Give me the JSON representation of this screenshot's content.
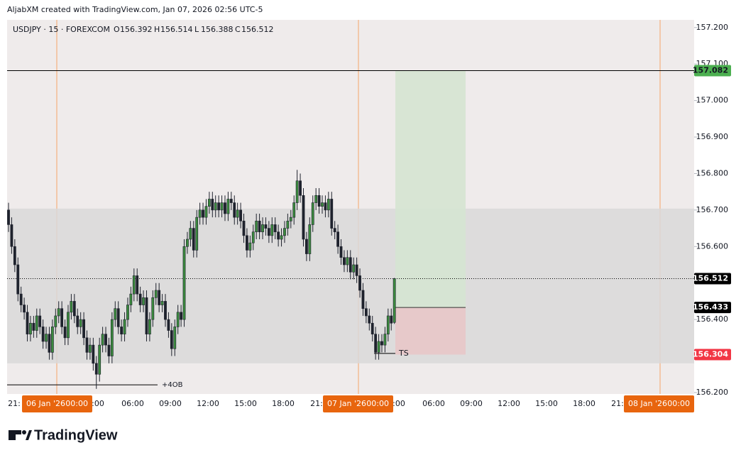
{
  "header": {
    "credit": "AljabXM created with TradingView.com, Jan 07, 2026 02:56 UTC-5",
    "symbol": "USDJPY · 15 · FOREXCOM",
    "ohlc": [
      {
        "label": "O",
        "value": 156.392
      },
      {
        "label": "H",
        "value": 156.514
      },
      {
        "label": "L",
        "value": 156.388
      },
      {
        "label": "C",
        "value": 156.512
      }
    ]
  },
  "footer": {
    "logo": "TradingView"
  },
  "chart_data": {
    "type": "candlestick",
    "ylim": [
      156.196,
      157.221
    ],
    "yticks": [
      {
        "value": 157.2,
        "label": "157.200"
      },
      {
        "value": 157.1,
        "label": "157.100"
      },
      {
        "value": 157.0,
        "label": "157.000"
      },
      {
        "value": 156.9,
        "label": "156.900"
      },
      {
        "value": 156.8,
        "label": "156.800"
      },
      {
        "value": 156.7,
        "label": "156.700"
      },
      {
        "value": 156.6,
        "label": "156.600"
      },
      {
        "value": 156.4,
        "label": "156.400"
      },
      {
        "value": 156.2,
        "label": "156.200"
      }
    ],
    "x_labels": [
      "21:",
      ":00",
      "06:00",
      "09:00",
      "12:00",
      "15:00",
      "18:00",
      "21:",
      ":00",
      "06:00",
      "09:00",
      "12:00",
      "15:00",
      "18:00",
      "21:"
    ],
    "date_labels": [
      {
        "date": "06 Jan '26",
        "time": "00:00"
      },
      {
        "date": "07 Jan '26",
        "time": "00:00"
      },
      {
        "date": "08 Jan '26",
        "time": "00:00"
      }
    ],
    "up_color": "#3b8a3e",
    "down_color": "#1e222d",
    "candles": {
      "open": [
        156.7,
        156.66,
        156.6,
        156.55,
        156.47,
        156.44,
        156.42,
        156.36,
        156.39,
        156.37,
        156.41,
        156.38,
        156.34,
        156.36,
        156.31,
        156.38,
        156.41,
        156.43,
        156.38,
        156.35,
        156.42,
        156.45,
        156.41,
        156.38,
        156.4,
        156.35,
        156.31,
        156.33,
        156.28,
        156.25,
        156.33,
        156.36,
        156.33,
        156.3,
        156.4,
        156.43,
        156.38,
        156.36,
        156.4,
        156.44,
        156.47,
        156.52,
        156.47,
        156.44,
        156.46,
        156.36,
        156.4,
        156.46,
        156.48,
        156.44,
        156.45,
        156.4,
        156.37,
        156.32,
        156.38,
        156.42,
        156.4,
        156.6,
        156.62,
        156.65,
        156.59,
        156.68,
        156.7,
        156.68,
        156.71,
        156.73,
        156.7,
        156.72,
        156.7,
        156.72,
        156.69,
        156.73,
        156.72,
        156.68,
        156.7,
        156.67,
        156.63,
        156.59,
        156.61,
        156.64,
        156.67,
        156.64,
        156.66,
        156.65,
        156.63,
        156.66,
        156.64,
        156.62,
        156.63,
        156.65,
        156.67,
        156.68,
        156.72,
        156.78,
        156.74,
        156.62,
        156.58,
        156.66,
        156.72,
        156.74,
        156.71,
        156.72,
        156.7,
        156.73,
        156.65,
        156.64,
        156.6,
        156.57,
        156.55,
        156.57,
        156.53,
        156.55,
        156.52,
        156.48,
        156.43,
        156.41,
        156.39,
        156.36,
        156.31,
        156.34,
        156.33,
        156.36,
        156.41,
        156.392
      ],
      "high": [
        156.72,
        156.68,
        156.62,
        156.57,
        156.49,
        156.46,
        156.44,
        156.41,
        156.41,
        156.43,
        156.43,
        156.4,
        156.38,
        156.38,
        156.4,
        156.43,
        156.45,
        156.45,
        156.4,
        156.44,
        156.47,
        156.47,
        156.43,
        156.42,
        156.42,
        156.37,
        156.35,
        156.35,
        156.3,
        156.35,
        156.38,
        156.38,
        156.35,
        156.42,
        156.45,
        156.45,
        156.4,
        156.42,
        156.46,
        156.49,
        156.54,
        156.54,
        156.49,
        156.48,
        156.48,
        156.42,
        156.48,
        156.5,
        156.5,
        156.47,
        156.47,
        156.42,
        156.39,
        156.4,
        156.44,
        156.44,
        156.62,
        156.64,
        156.67,
        156.67,
        156.7,
        156.72,
        156.72,
        156.73,
        156.75,
        156.75,
        156.74,
        156.74,
        156.74,
        156.74,
        156.75,
        156.75,
        156.74,
        156.72,
        156.72,
        156.69,
        156.65,
        156.63,
        156.66,
        156.69,
        156.69,
        156.68,
        156.68,
        156.67,
        156.68,
        156.68,
        156.66,
        156.65,
        156.67,
        156.69,
        156.7,
        156.74,
        156.81,
        156.8,
        156.76,
        156.64,
        156.68,
        156.74,
        156.76,
        156.76,
        156.74,
        156.74,
        156.75,
        156.75,
        156.67,
        156.66,
        156.62,
        156.59,
        156.59,
        156.59,
        156.57,
        156.57,
        156.54,
        156.5,
        156.45,
        156.43,
        156.41,
        156.38,
        156.36,
        156.36,
        156.38,
        156.43,
        156.43,
        156.514
      ],
      "low": [
        156.64,
        156.58,
        156.53,
        156.45,
        156.42,
        156.4,
        156.34,
        156.34,
        156.35,
        156.35,
        156.36,
        156.32,
        156.32,
        156.29,
        156.29,
        156.36,
        156.39,
        156.36,
        156.33,
        156.33,
        156.4,
        156.39,
        156.36,
        156.36,
        156.33,
        156.29,
        156.29,
        156.26,
        156.21,
        156.23,
        156.31,
        156.31,
        156.28,
        156.28,
        156.38,
        156.36,
        156.34,
        156.34,
        156.38,
        156.42,
        156.45,
        156.45,
        156.42,
        156.42,
        156.34,
        156.34,
        156.38,
        156.44,
        156.42,
        156.42,
        156.38,
        156.35,
        156.3,
        156.3,
        156.36,
        156.38,
        156.38,
        156.58,
        156.6,
        156.57,
        156.57,
        156.66,
        156.66,
        156.66,
        156.69,
        156.68,
        156.68,
        156.68,
        156.68,
        156.67,
        156.67,
        156.7,
        156.66,
        156.66,
        156.65,
        156.61,
        156.57,
        156.57,
        156.59,
        156.62,
        156.62,
        156.62,
        156.63,
        156.61,
        156.61,
        156.62,
        156.6,
        156.6,
        156.61,
        156.63,
        156.65,
        156.66,
        156.7,
        156.72,
        156.6,
        156.56,
        156.56,
        156.64,
        156.7,
        156.69,
        156.69,
        156.68,
        156.68,
        156.63,
        156.62,
        156.58,
        156.55,
        156.53,
        156.53,
        156.51,
        156.51,
        156.5,
        156.46,
        156.41,
        156.39,
        156.37,
        156.34,
        156.29,
        156.29,
        156.31,
        156.31,
        156.34,
        156.37,
        156.388
      ],
      "close": [
        156.66,
        156.6,
        156.55,
        156.47,
        156.44,
        156.42,
        156.36,
        156.39,
        156.37,
        156.41,
        156.38,
        156.34,
        156.36,
        156.31,
        156.38,
        156.41,
        156.43,
        156.38,
        156.35,
        156.42,
        156.45,
        156.41,
        156.38,
        156.4,
        156.35,
        156.31,
        156.33,
        156.28,
        156.25,
        156.33,
        156.36,
        156.33,
        156.3,
        156.4,
        156.43,
        156.38,
        156.36,
        156.4,
        156.44,
        156.47,
        156.52,
        156.47,
        156.44,
        156.46,
        156.36,
        156.4,
        156.46,
        156.48,
        156.44,
        156.45,
        156.4,
        156.37,
        156.32,
        156.38,
        156.42,
        156.4,
        156.6,
        156.62,
        156.65,
        156.59,
        156.68,
        156.7,
        156.68,
        156.71,
        156.73,
        156.7,
        156.72,
        156.7,
        156.72,
        156.69,
        156.73,
        156.72,
        156.68,
        156.7,
        156.67,
        156.63,
        156.59,
        156.61,
        156.64,
        156.67,
        156.64,
        156.66,
        156.65,
        156.63,
        156.66,
        156.64,
        156.62,
        156.63,
        156.65,
        156.67,
        156.68,
        156.72,
        156.78,
        156.74,
        156.62,
        156.58,
        156.66,
        156.72,
        156.74,
        156.71,
        156.72,
        156.7,
        156.73,
        156.65,
        156.64,
        156.6,
        156.57,
        156.55,
        156.57,
        156.53,
        156.55,
        156.52,
        156.48,
        156.43,
        156.41,
        156.39,
        156.36,
        156.31,
        156.34,
        156.33,
        156.36,
        156.41,
        156.39,
        156.512
      ]
    },
    "zone": {
      "top": 156.704,
      "bottom": 156.28,
      "color": "#d9d9d9"
    },
    "position": {
      "target": 157.082,
      "entry": 156.433,
      "stop": 156.304,
      "target_color": "#d5e4d2",
      "stop_color": "#e8c6c8"
    },
    "levels": [
      {
        "value": 157.082,
        "color": "#4caf50"
      },
      {
        "value": 156.512,
        "color": "#000000"
      },
      {
        "value": 156.433,
        "color": "#000000"
      },
      {
        "value": 156.304,
        "color": "#f23645"
      }
    ],
    "annotations": [
      {
        "text": "+4OB",
        "value": 156.221
      },
      {
        "text": "TS",
        "value": 156.307
      }
    ]
  }
}
